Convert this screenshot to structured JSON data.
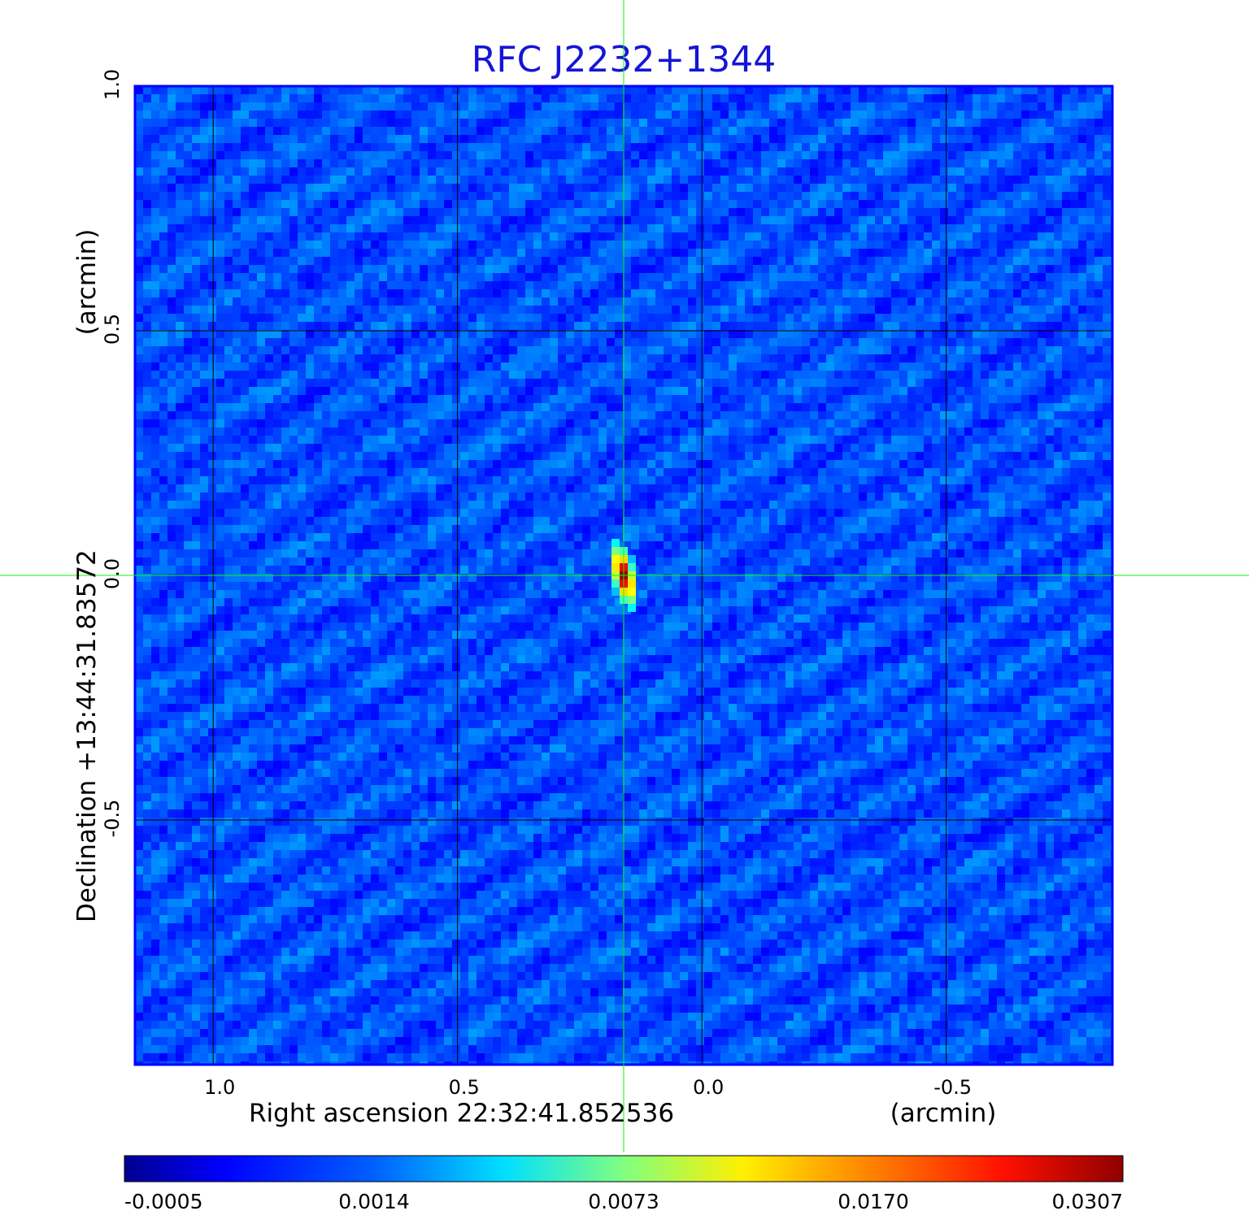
{
  "chart_data": {
    "type": "heatmap",
    "title": "RFC J2232+1344",
    "xlabel": "Right ascension  22:32:41.852536",
    "xunit": "(arcmin)",
    "ylabel": "Declination  +13:44:31.83572",
    "yunit": "(arcmin)",
    "x_ticks": [
      1.0,
      0.5,
      0.0,
      -0.5
    ],
    "x_tick_labels": [
      "1.0",
      "0.5",
      "0.0",
      "-0.5"
    ],
    "y_ticks": [
      1.0,
      0.5,
      0.0,
      -0.5
    ],
    "y_tick_labels": [
      "1.0",
      "0.5",
      "0.0",
      "-0.5"
    ],
    "xlim": [
      1.16,
      -0.84
    ],
    "ylim": [
      -1.0,
      1.0
    ],
    "grid": true,
    "crosshair": [
      0.16,
      0.0
    ],
    "colorbar": {
      "tick_labels": [
        "-0.0005",
        "0.0014",
        "0.0073",
        "0.0170",
        "0.0307"
      ],
      "colormap": "jet",
      "position": "bottom"
    },
    "peak": {
      "x": 0.16,
      "y": 0.0,
      "value": 0.0307
    },
    "background_level": 0.0,
    "source_shape": "compact elongated source, elongated roughly north-south with slight tilt"
  },
  "colors": {
    "title": "#1515d6",
    "grid": "#000000",
    "crosshair": "#00ff00",
    "frame": "#0000ff",
    "text": "#000000"
  }
}
